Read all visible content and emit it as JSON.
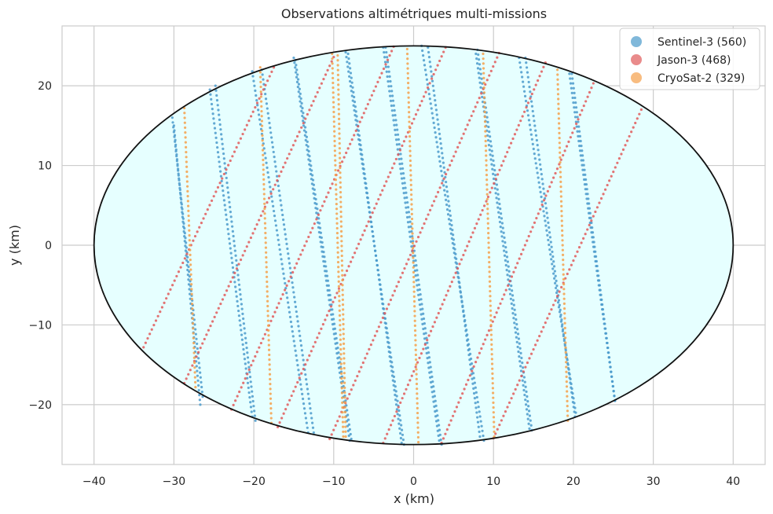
{
  "chart_data": {
    "type": "scatter",
    "title": "Observations altimétriques multi-missions",
    "xlabel": "x (km)",
    "ylabel": "y (km)",
    "xlim": [
      -44,
      44
    ],
    "ylim": [
      -27.5,
      27.5
    ],
    "x_ticks": [
      -40,
      -30,
      -20,
      -10,
      0,
      10,
      20,
      30,
      40
    ],
    "y_ticks": [
      -20,
      -10,
      0,
      10,
      20
    ],
    "x_tick_labels": [
      "−40",
      "−30",
      "−20",
      "−10",
      "0",
      "10",
      "20",
      "30",
      "40"
    ],
    "y_tick_labels": [
      "−20",
      "−10",
      "0",
      "10",
      "20"
    ],
    "grid": true,
    "legend_position": "top-right",
    "domain_ellipse": {
      "center": [
        0,
        0
      ],
      "semi_axis_x": 40,
      "semi_axis_y": 25,
      "fill": "#e6ffff",
      "edge": "#111111"
    },
    "series": [
      {
        "name": "Sentinel-3",
        "count": 560,
        "color": "#4a9acb",
        "tracks": [
          {
            "x": [
              -30.2,
              -26.4
            ],
            "y": [
              16.0,
              -19.0
            ]
          },
          {
            "x": [
              -25.5,
              -20.2
            ],
            "y": [
              19.5,
              -21.5
            ]
          },
          {
            "x": [
              -20.2,
              -13.2
            ],
            "y": [
              21.8,
              -23.5
            ]
          },
          {
            "x": [
              -14.8,
              -7.8
            ],
            "y": [
              23.2,
              -24.3
            ]
          },
          {
            "x": [
              -8.2,
              -1.5
            ],
            "y": [
              24.0,
              -24.8
            ]
          },
          {
            "x": [
              -3.8,
              3.2
            ],
            "y": [
              24.8,
              -24.5
            ]
          },
          {
            "x": [
              1.8,
              8.3
            ],
            "y": [
              24.8,
              -24.0
            ]
          },
          {
            "x": [
              7.8,
              14.5
            ],
            "y": [
              24.0,
              -23.0
            ]
          },
          {
            "x": [
              13.2,
              20.3
            ],
            "y": [
              23.5,
              -21.0
            ]
          },
          {
            "x": [
              19.5,
              25.2
            ],
            "y": [
              21.5,
              -19.5
            ]
          },
          {
            "x": [
              -26.7,
              -30.0
            ],
            "y": [
              -20.0,
              15.0
            ]
          },
          {
            "x": [
              -19.8,
              -24.8
            ],
            "y": [
              -22.0,
              20.0
            ]
          },
          {
            "x": [
              -12.5,
              -19.0
            ],
            "y": [
              -23.5,
              22.0
            ]
          },
          {
            "x": [
              -8.0,
              -15.0
            ],
            "y": [
              -24.5,
              23.5
            ]
          },
          {
            "x": [
              -1.2,
              -8.5
            ],
            "y": [
              -25.0,
              24.2
            ]
          },
          {
            "x": [
              3.5,
              -3.5
            ],
            "y": [
              -25.0,
              24.8
            ]
          },
          {
            "x": [
              8.8,
              1.0
            ],
            "y": [
              -24.5,
              25.0
            ]
          },
          {
            "x": [
              14.8,
              8.0
            ],
            "y": [
              -23.2,
              24.5
            ]
          },
          {
            "x": [
              20.2,
              14.0
            ],
            "y": [
              -21.5,
              23.5
            ]
          },
          {
            "x": [
              25.2,
              19.8
            ],
            "y": [
              -19.5,
              21.5
            ]
          }
        ]
      },
      {
        "name": "Jason-3",
        "count": 468,
        "color": "#e05a5a",
        "tracks": [
          {
            "x": [
              -33.8,
              -17.5
            ],
            "y": [
              -12.8,
              22.3
            ]
          },
          {
            "x": [
              -28.7,
              -10.0
            ],
            "y": [
              -17.3,
              23.6
            ]
          },
          {
            "x": [
              -22.8,
              -2.5
            ],
            "y": [
              -20.6,
              24.9
            ]
          },
          {
            "x": [
              -17.0,
              4.0
            ],
            "y": [
              -22.8,
              24.8
            ]
          },
          {
            "x": [
              -10.5,
              10.7
            ],
            "y": [
              -24.3,
              24.1
            ]
          },
          {
            "x": [
              -3.8,
              16.5
            ],
            "y": [
              -24.8,
              22.9
            ]
          },
          {
            "x": [
              3.5,
              22.5
            ],
            "y": [
              -24.8,
              20.3
            ]
          },
          {
            "x": [
              10.0,
              28.5
            ],
            "y": [
              -24.2,
              17.0
            ]
          }
        ]
      },
      {
        "name": "CryoSat-2",
        "count": 329,
        "color": "#f5a04a",
        "tracks": [
          {
            "x": [
              -28.7,
              -27.3
            ],
            "y": [
              17.2,
              -17.8
            ]
          },
          {
            "x": [
              -19.2,
              -17.8
            ],
            "y": [
              22.3,
              -22.3
            ]
          },
          {
            "x": [
              -10.2,
              -8.8
            ],
            "y": [
              24.0,
              -24.0
            ]
          },
          {
            "x": [
              -0.8,
              0.6
            ],
            "y": [
              24.6,
              -24.7
            ]
          },
          {
            "x": [
              8.7,
              10.1
            ],
            "y": [
              24.0,
              -24.0
            ]
          },
          {
            "x": [
              18.0,
              19.3
            ],
            "y": [
              22.0,
              -22.0
            ]
          },
          {
            "x": [
              -8.5,
              -9.5
            ],
            "y": [
              -24.0,
              23.8
            ]
          }
        ]
      }
    ]
  }
}
